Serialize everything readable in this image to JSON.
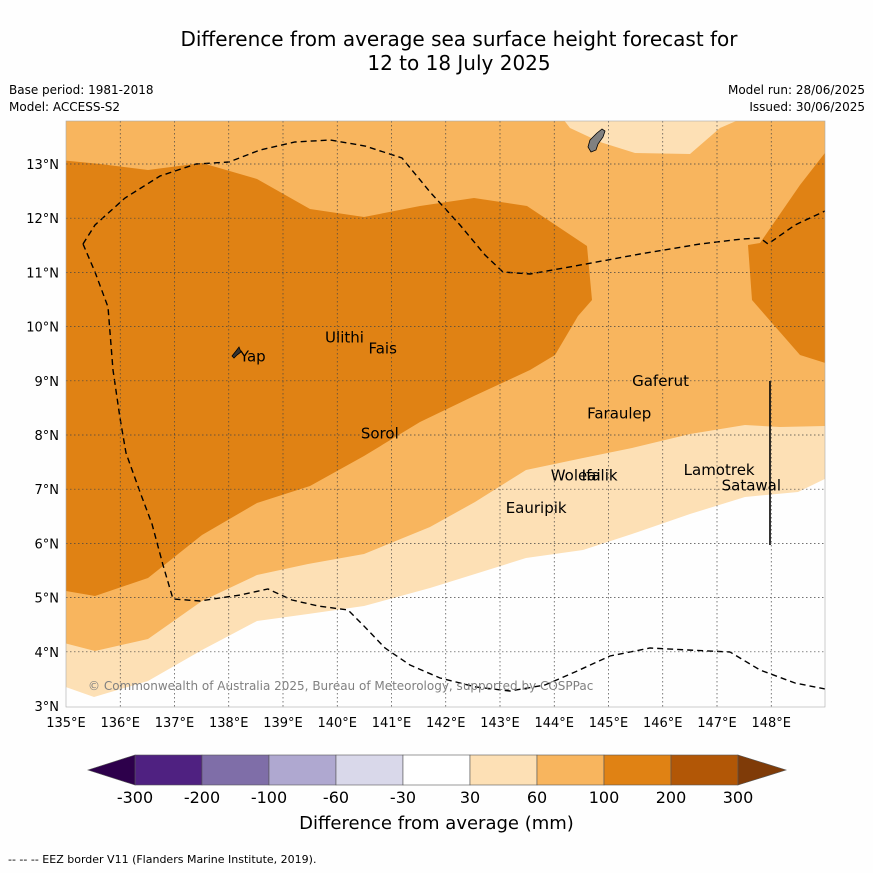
{
  "header": {
    "title_line1": "Difference from average sea surface height forecast for",
    "title_line2": "12 to 18 July 2025",
    "base_period": "Base period: 1981-2018",
    "model": "Model: ACCESS-S2",
    "model_run": "Model run: 28/06/2025",
    "issued": "Issued: 30/06/2025"
  },
  "map": {
    "lon_labels": [
      "135°E",
      "136°E",
      "137°E",
      "138°E",
      "139°E",
      "140°E",
      "141°E",
      "142°E",
      "143°E",
      "144°E",
      "145°E",
      "146°E",
      "147°E",
      "148°E"
    ],
    "lat_labels": [
      "3°N",
      "4°N",
      "5°N",
      "6°N",
      "7°N",
      "8°N",
      "9°N",
      "10°N",
      "11°N",
      "12°N",
      "13°N"
    ],
    "places": [
      {
        "name": "Yap",
        "lon": 138.15,
        "lat": 9.45
      },
      {
        "name": "Ulithi",
        "lon": 139.72,
        "lat": 9.8
      },
      {
        "name": "Fais",
        "lon": 140.52,
        "lat": 9.6
      },
      {
        "name": "Gaferut",
        "lon": 145.38,
        "lat": 9.0
      },
      {
        "name": "Faraulep",
        "lon": 144.55,
        "lat": 8.4
      },
      {
        "name": "Sorol",
        "lon": 140.38,
        "lat": 8.03
      },
      {
        "name": "Lamotrek",
        "lon": 146.33,
        "lat": 7.35
      },
      {
        "name": "Woleai",
        "lon": 143.88,
        "lat": 7.25
      },
      {
        "name": "Ifalik",
        "lon": 144.45,
        "lat": 7.25
      },
      {
        "name": "Satawal",
        "lon": 147.03,
        "lat": 7.07
      },
      {
        "name": "Eauripik",
        "lon": 143.05,
        "lat": 6.65
      }
    ],
    "copyright": "© Commonwealth of Australia 2025, Bureau of Meteorology, supported by COSPPac"
  },
  "colorbar": {
    "title": "Difference from average (mm)",
    "tick_labels": [
      "-300",
      "-200",
      "-100",
      "-60",
      "-30",
      "30",
      "60",
      "100",
      "200",
      "300"
    ],
    "colors": [
      "#4f2181",
      "#7f6ea8",
      "#afa8d0",
      "#d9d8ea",
      "#ffffff",
      "#fde0b5",
      "#f8b55e",
      "#e08214",
      "#b25706",
      "#7f3b08",
      "#2d004b"
    ]
  },
  "footer": {
    "legend": "--  --  -- EEZ border V11 (Flanders Marine Institute, 2019)."
  }
}
